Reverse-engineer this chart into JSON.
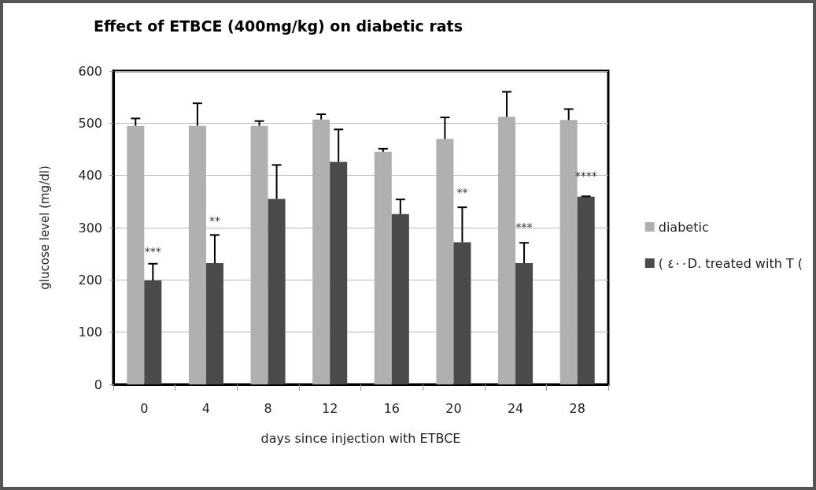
{
  "chart_data": {
    "type": "bar",
    "title": "Effect of ETBCE (400mg/kg) on diabetic rats",
    "xlabel": "days since injection with ETBCE",
    "ylabel": "glucose level (mg/dl)",
    "categories": [
      "0",
      "4",
      "8",
      "12",
      "16",
      "20",
      "24",
      "28"
    ],
    "series": [
      {
        "name": "diabetic",
        "color": "#b0b0b0",
        "values": [
          495,
          495,
          495,
          507,
          445,
          470,
          512,
          506
        ],
        "errors": [
          [
            495,
            509
          ],
          [
            495,
            538
          ],
          [
            495,
            504
          ],
          [
            507,
            517
          ],
          [
            445,
            451
          ],
          [
            470,
            511
          ],
          [
            512,
            560
          ],
          [
            506,
            527
          ]
        ]
      },
      {
        "name": "( ٤٠٠D. treated with T (",
        "color": "#4a4a4a",
        "values": [
          199,
          232,
          355,
          426,
          326,
          272,
          232,
          359
        ],
        "errors": [
          [
            199,
            231
          ],
          [
            232,
            286
          ],
          [
            355,
            420
          ],
          [
            426,
            488
          ],
          [
            326,
            354
          ],
          [
            272,
            339
          ],
          [
            232,
            271
          ],
          [
            359,
            360
          ]
        ]
      }
    ],
    "annotations": [
      {
        "text": "***",
        "x": "0",
        "y": 255
      },
      {
        "text": "**",
        "x": "4",
        "y": 313
      },
      {
        "text": "**",
        "x": "20",
        "y": 368
      },
      {
        "text": "***",
        "x": "24",
        "y": 301
      },
      {
        "text": "****",
        "x": "28",
        "y": 400
      }
    ],
    "ylim": [
      0,
      600
    ],
    "yticks": [
      0,
      100,
      200,
      300,
      400,
      500,
      600
    ],
    "grid": "y",
    "legend": "right"
  }
}
